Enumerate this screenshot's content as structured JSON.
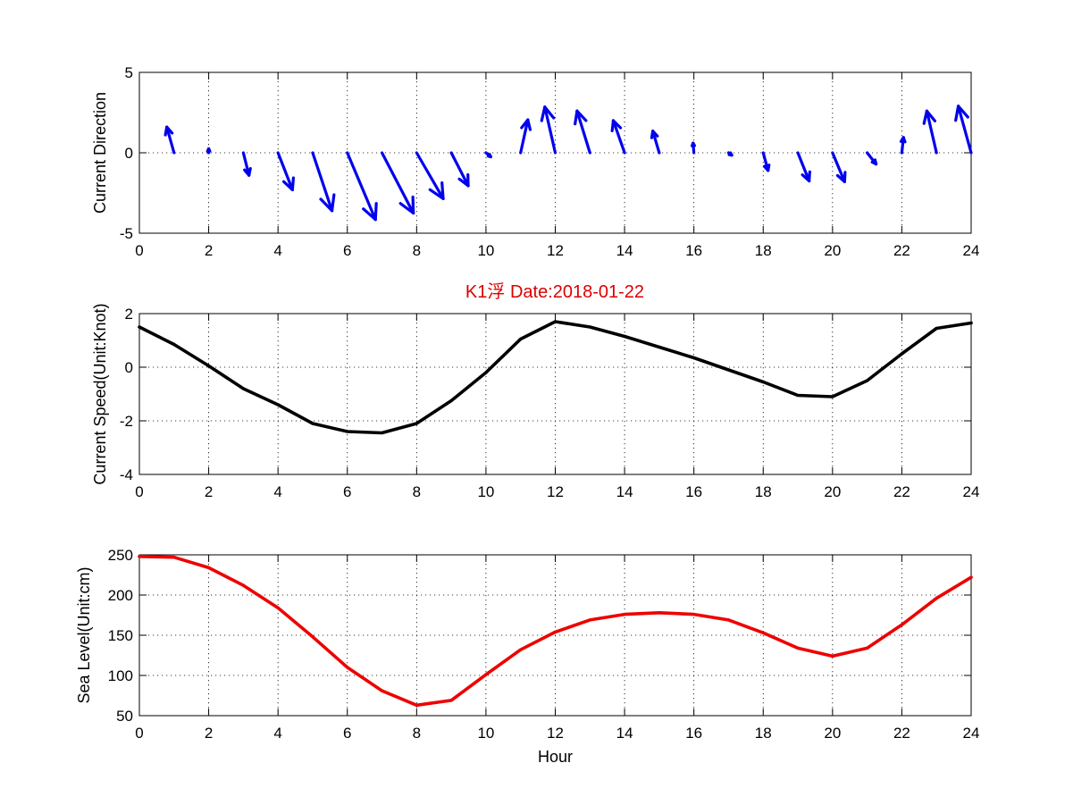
{
  "title": "K1浮   Date:2018-01-22",
  "colors": {
    "direction": "#0000ee",
    "speed": "#000000",
    "sea_level": "#ee0000",
    "title": "#dd0000"
  },
  "chart_data": [
    {
      "type": "quiver",
      "ylabel": "Current Direction",
      "xlim": [
        0,
        24
      ],
      "ylim": [
        -5,
        5
      ],
      "xticks": [
        "0",
        "2",
        "4",
        "6",
        "8",
        "10",
        "12",
        "14",
        "16",
        "18",
        "20",
        "22",
        "24"
      ],
      "yticks": [
        "-5",
        "0",
        "5"
      ],
      "grid": true,
      "x": [
        0,
        1,
        2,
        3,
        4,
        5,
        6,
        7,
        8,
        9,
        10,
        11,
        12,
        13,
        14,
        15,
        16,
        17,
        18,
        19,
        20,
        21,
        22,
        23,
        24
      ],
      "u": [
        0,
        -0.45,
        0,
        0.35,
        0.9,
        1.2,
        1.75,
        1.95,
        1.65,
        1.05,
        0.3,
        0.45,
        -0.65,
        -0.8,
        -0.7,
        -0.4,
        -0.05,
        0.2,
        0.3,
        0.7,
        0.75,
        0.55,
        0.1,
        -0.6,
        -0.8
      ],
      "v": [
        0,
        1.6,
        0.25,
        -1.4,
        -2.3,
        -3.6,
        -4.15,
        -3.75,
        -2.85,
        -2.05,
        -0.25,
        2.05,
        2.85,
        2.6,
        2.0,
        1.35,
        0.6,
        -0.15,
        -1.1,
        -1.75,
        -1.8,
        -0.7,
        0.95,
        2.6,
        2.9
      ]
    },
    {
      "type": "line",
      "ylabel": "Current Speed(Unit:Knot)",
      "xlim": [
        0,
        24
      ],
      "ylim": [
        -4,
        2
      ],
      "xticks": [
        "0",
        "2",
        "4",
        "6",
        "8",
        "10",
        "12",
        "14",
        "16",
        "18",
        "20",
        "22",
        "24"
      ],
      "yticks": [
        "-4",
        "-2",
        "0",
        "2"
      ],
      "grid": true,
      "x": [
        0,
        1,
        2,
        3,
        4,
        5,
        6,
        7,
        8,
        9,
        10,
        11,
        12,
        13,
        14,
        15,
        16,
        17,
        18,
        19,
        20,
        21,
        22,
        23,
        24
      ],
      "y": [
        1.5,
        0.85,
        0.05,
        -0.8,
        -1.4,
        -2.1,
        -2.4,
        -2.45,
        -2.1,
        -1.25,
        -0.2,
        1.05,
        1.7,
        1.5,
        1.15,
        0.75,
        0.35,
        -0.1,
        -0.55,
        -1.05,
        -1.1,
        -0.5,
        0.5,
        1.45,
        1.65
      ]
    },
    {
      "type": "line",
      "ylabel": "Sea Level(Unit:cm)",
      "xlabel": "Hour",
      "xlim": [
        0,
        24
      ],
      "ylim": [
        50,
        250
      ],
      "xticks": [
        "0",
        "2",
        "4",
        "6",
        "8",
        "10",
        "12",
        "14",
        "16",
        "18",
        "20",
        "22",
        "24"
      ],
      "yticks": [
        "50",
        "100",
        "150",
        "200",
        "250"
      ],
      "grid": true,
      "x": [
        0,
        1,
        2,
        3,
        4,
        5,
        6,
        7,
        8,
        9,
        10,
        11,
        12,
        13,
        14,
        15,
        16,
        17,
        18,
        19,
        20,
        21,
        22,
        23,
        24
      ],
      "y": [
        248,
        247,
        234,
        212,
        184,
        148,
        110,
        81,
        63,
        69,
        101,
        132,
        154,
        169,
        176,
        178,
        176,
        169,
        153,
        134,
        124,
        134,
        163,
        196,
        222
      ]
    }
  ]
}
